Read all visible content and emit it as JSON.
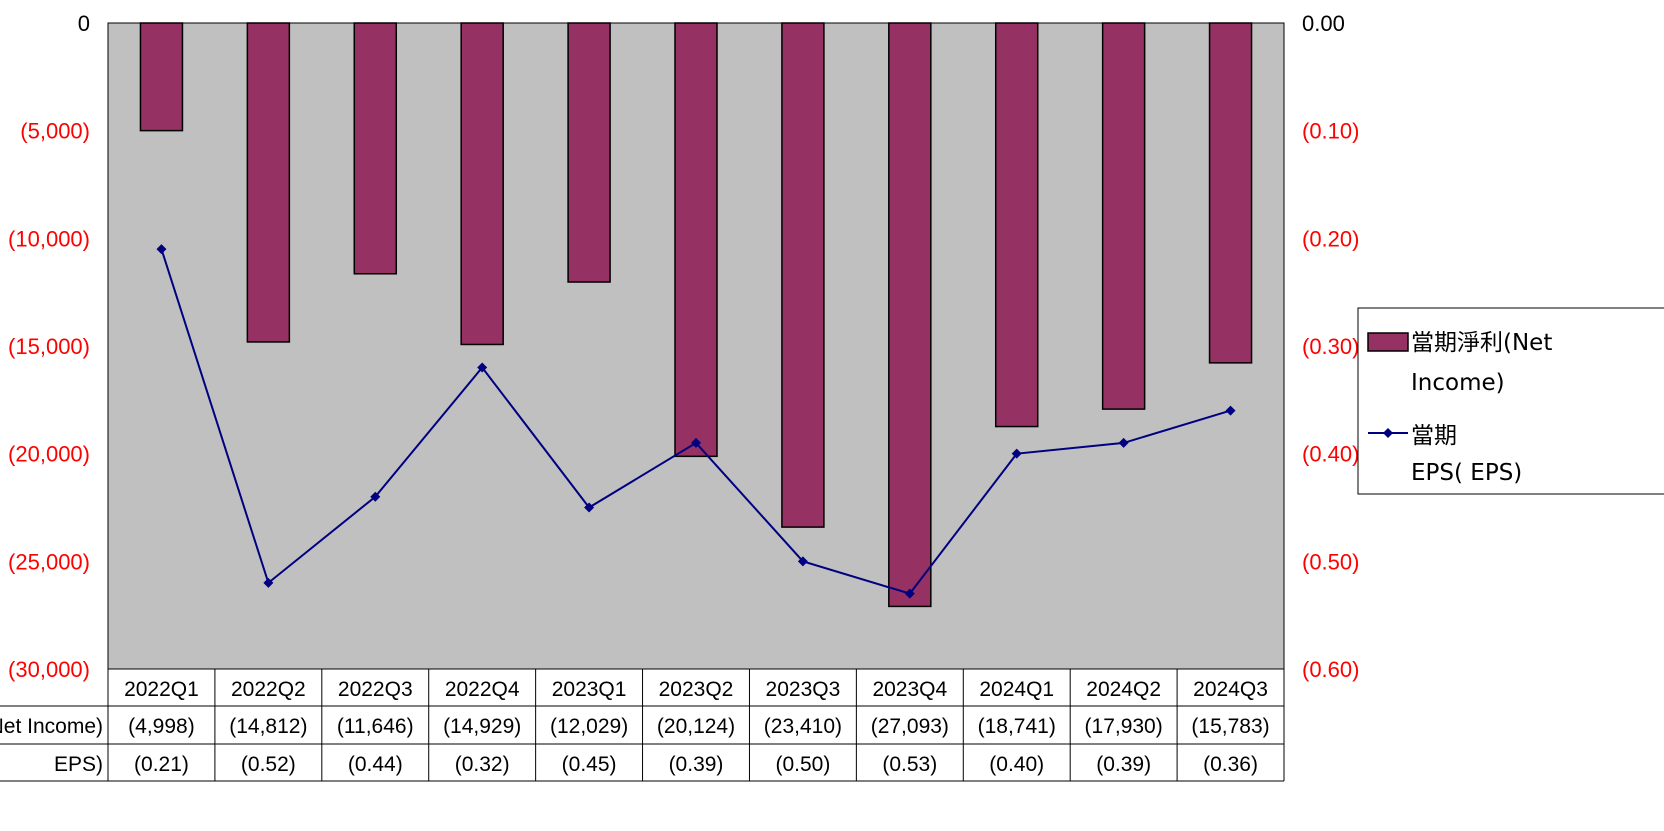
{
  "chart_data": {
    "type": "bar",
    "categories": [
      "2022Q1",
      "2022Q2",
      "2022Q3",
      "2022Q4",
      "2023Q1",
      "2023Q2",
      "2023Q3",
      "2023Q4",
      "2024Q1",
      "2024Q2",
      "2024Q3"
    ],
    "series": [
      {
        "name": "當期淨利(Net Income)",
        "type": "bar",
        "axis": "left",
        "color": "#953163",
        "values": [
          -4998,
          -14812,
          -11646,
          -14929,
          -12029,
          -20124,
          -23410,
          -27093,
          -18741,
          -17930,
          -15783
        ]
      },
      {
        "name": "當期EPS( EPS)",
        "type": "line",
        "axis": "right",
        "color": "#000080",
        "values": [
          -0.21,
          -0.52,
          -0.44,
          -0.32,
          -0.45,
          -0.39,
          -0.5,
          -0.53,
          -0.4,
          -0.39,
          -0.36
        ]
      }
    ],
    "left_axis": {
      "ylim": [
        -30000,
        0
      ],
      "ticks": [
        "0",
        "(5,000)",
        "(10,000)",
        "(15,000)",
        "(20,000)",
        "(25,000)",
        "(30,000)"
      ],
      "tick_color_negative": "#ff0000",
      "tick_color_zero": "#000000"
    },
    "right_axis": {
      "ylim": [
        -0.6,
        0
      ],
      "ticks": [
        "0.00",
        "(0.10)",
        "(0.20)",
        "(0.30)",
        "(0.40)",
        "(0.50)",
        "(0.60)"
      ],
      "tick_color_negative": "#ff0000",
      "tick_color_zero": "#000000"
    },
    "plot_background": "#c0c0c0",
    "legend": {
      "placement": "right",
      "items": [
        {
          "marker": "bar",
          "lines": [
            "當期淨利(Net",
            "Income)"
          ]
        },
        {
          "marker": "line",
          "lines": [
            "當期",
            "EPS( EPS)"
          ]
        }
      ]
    },
    "data_table": {
      "row_labels": [
        "Net Income)",
        "EPS)"
      ],
      "rows": [
        [
          "(4,998)",
          "(14,812)",
          "(11,646)",
          "(14,929)",
          "(12,029)",
          "(20,124)",
          "(23,410)",
          "(27,093)",
          "(18,741)",
          "(17,930)",
          "(15,783)"
        ],
        [
          "(0.21)",
          "(0.52)",
          "(0.44)",
          "(0.32)",
          "(0.45)",
          "(0.39)",
          "(0.50)",
          "(0.53)",
          "(0.40)",
          "(0.39)",
          "(0.36)"
        ]
      ]
    }
  }
}
